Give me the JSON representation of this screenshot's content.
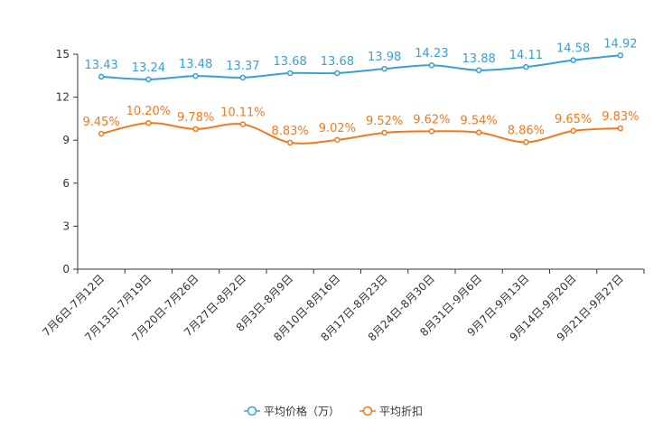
{
  "chart_data": {
    "type": "line",
    "categories": [
      "7月6日-7月12日",
      "7月13日-7月19日",
      "7月20日-7月26日",
      "7月27日-8月2日",
      "8月3日-8月9日",
      "8月10日-8月16日",
      "8月17日-8月23日",
      "8月24日-8月30日",
      "8月31日-9月6日",
      "9月7日-9月13日",
      "9月14日-9月20日",
      "9月21日-9月27日"
    ],
    "ylim": [
      0,
      15
    ],
    "yticks": [
      0,
      3,
      6,
      9,
      12,
      15
    ],
    "series": [
      {
        "name": "平均价格（万）",
        "color": "#3aa0d0",
        "values": [
          13.43,
          13.24,
          13.48,
          13.37,
          13.68,
          13.68,
          13.98,
          14.23,
          13.88,
          14.11,
          14.58,
          14.92
        ],
        "labels": [
          "13.43",
          "13.24",
          "13.48",
          "13.37",
          "13.68",
          "13.68",
          "13.98",
          "14.23",
          "13.88",
          "14.11",
          "14.58",
          "14.92"
        ]
      },
      {
        "name": "平均折扣",
        "color": "#f07a1e",
        "values": [
          9.45,
          10.2,
          9.78,
          10.11,
          8.83,
          9.02,
          9.52,
          9.62,
          9.54,
          8.86,
          9.65,
          9.83
        ],
        "labels": [
          "9.45%",
          "10.20%",
          "9.78%",
          "10.11%",
          "8.83%",
          "9.02%",
          "9.52%",
          "9.62%",
          "9.54%",
          "8.86%",
          "9.65%",
          "9.83%"
        ]
      }
    ],
    "legend": "bottom-center",
    "grid": false
  }
}
